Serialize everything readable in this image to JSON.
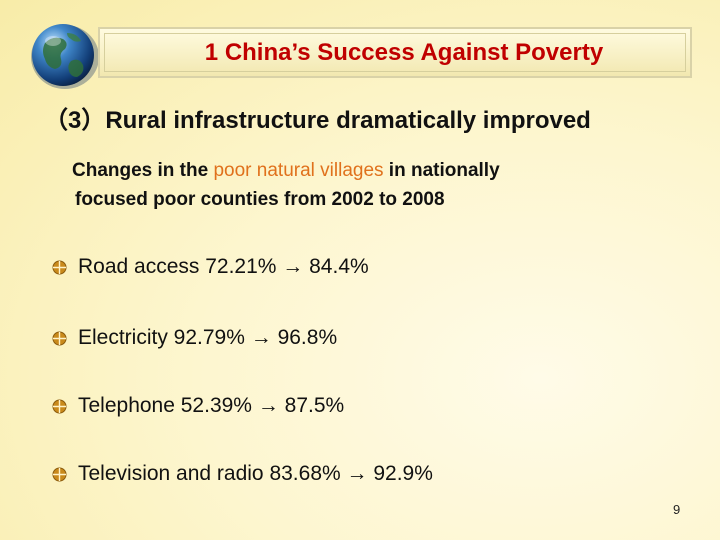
{
  "header": {
    "title": "1 China’s Success Against Poverty"
  },
  "subtitle": "（3）Rural infrastructure dramatically improved",
  "intro": {
    "part1": "Changes in the ",
    "highlight": "poor natural villages",
    "part2": " in nationally",
    "line2": "focused poor counties from 2002 to 2008"
  },
  "bullets": [
    {
      "label": "Road access 72.21% → 84.4%"
    },
    {
      "label": "Electricity 92.79% → 96.8%"
    },
    {
      "label": "Telephone 52.39% → 87.5%"
    },
    {
      "label": "Television and radio 83.68% → 92.9%"
    }
  ],
  "page_number": "9",
  "colors": {
    "title": "#c00000",
    "highlight": "#e0711c",
    "bullet": "#c98a1b"
  },
  "icons": {
    "globe": "globe-icon",
    "bullet": "bullet-icon"
  }
}
